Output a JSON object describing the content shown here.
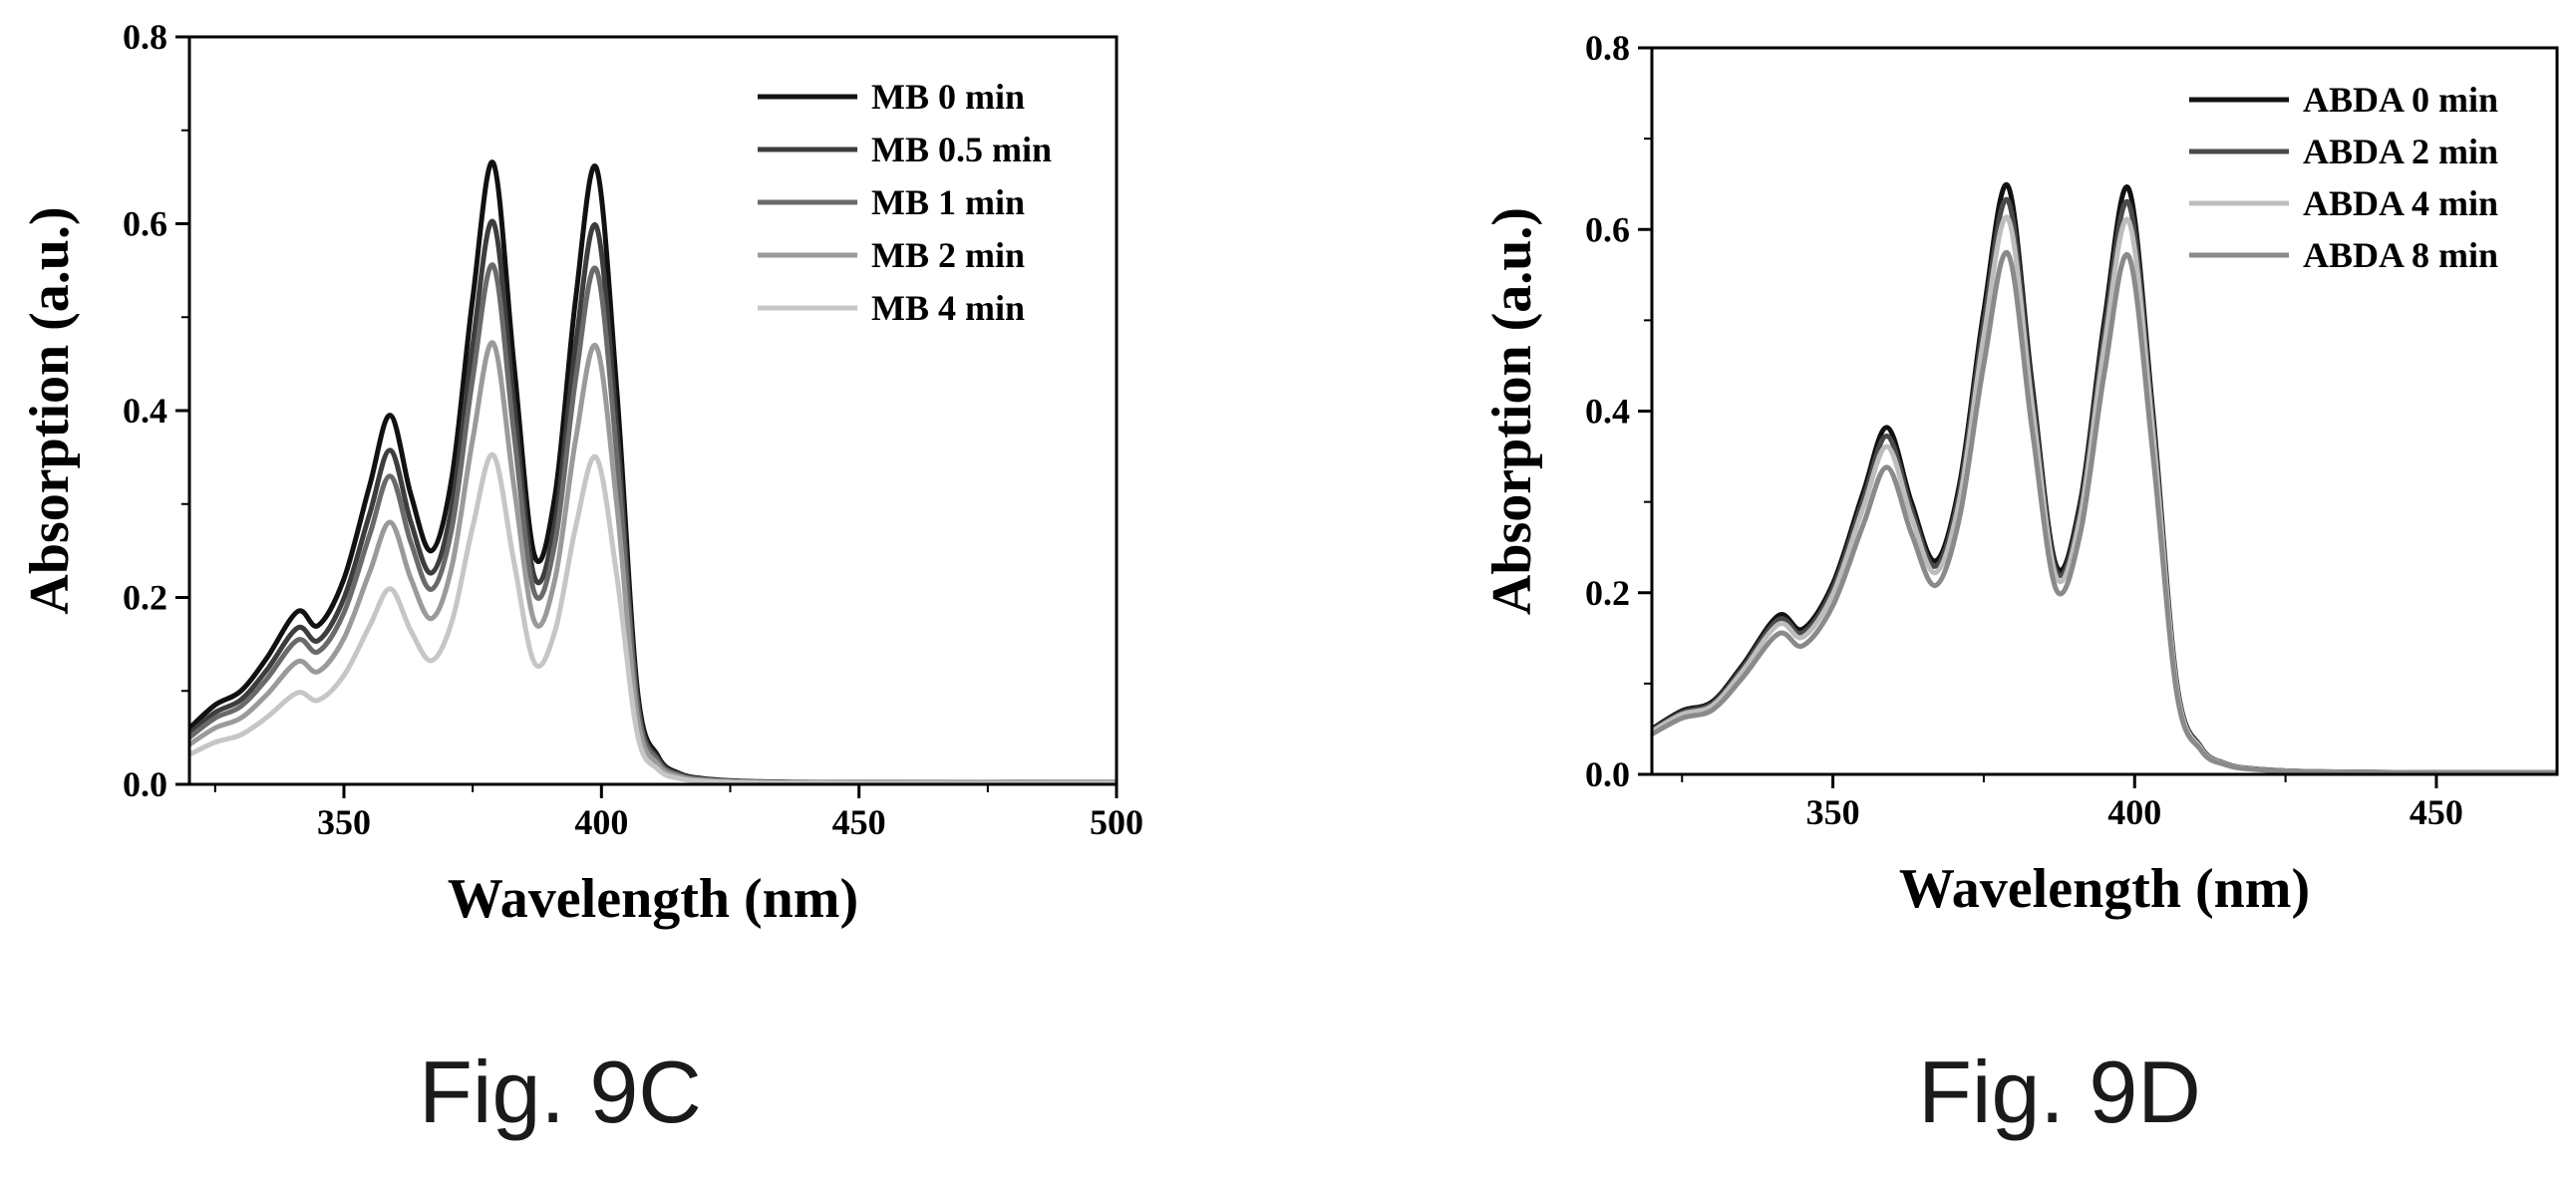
{
  "figures": {
    "left_caption": "Fig. 9C",
    "right_caption": "Fig. 9D"
  },
  "chart_data": [
    {
      "type": "line",
      "title": "",
      "xlabel": "Wavelength (nm)",
      "ylabel": "Absorption (a.u.)",
      "xlim": [
        320,
        500
      ],
      "ylim": [
        0,
        0.8
      ],
      "xticks": [
        350,
        400,
        450,
        500
      ],
      "yticks": [
        0.0,
        0.2,
        0.4,
        0.6,
        0.8
      ],
      "grid": false,
      "legend_position": "top-right",
      "series": [
        {
          "name": "MB 0 min",
          "color": "#111111",
          "scale": 1.0
        },
        {
          "name": "MB 0.5 min",
          "color": "#3d3d3d",
          "scale": 0.905
        },
        {
          "name": "MB 1 min",
          "color": "#6a6a6a",
          "scale": 0.835
        },
        {
          "name": "MB 2 min",
          "color": "#9a9a9a",
          "scale": 0.71
        },
        {
          "name": "MB 4 min",
          "color": "#c6c6c6",
          "scale": 0.53
        }
      ],
      "x": [
        320,
        325,
        330,
        335,
        341,
        345,
        350,
        355,
        359,
        363,
        367,
        371,
        375,
        379,
        383,
        387,
        391,
        395,
        399,
        403,
        407,
        411,
        415,
        420,
        430,
        450,
        500
      ],
      "reference_profile": [
        0.06,
        0.085,
        0.1,
        0.135,
        0.185,
        0.17,
        0.22,
        0.32,
        0.395,
        0.31,
        0.25,
        0.33,
        0.52,
        0.665,
        0.45,
        0.245,
        0.31,
        0.52,
        0.66,
        0.42,
        0.1,
        0.03,
        0.012,
        0.006,
        0.003,
        0.002,
        0.002
      ]
    },
    {
      "type": "line",
      "title": "",
      "xlabel": "Wavelength (nm)",
      "ylabel": "Absorption (a.u.)",
      "xlim": [
        320,
        470
      ],
      "ylim": [
        0,
        0.8
      ],
      "xticks": [
        350,
        400,
        450
      ],
      "yticks": [
        0.0,
        0.2,
        0.4,
        0.6,
        0.8
      ],
      "grid": false,
      "legend_position": "top-right",
      "series": [
        {
          "name": "ABDA 0 min",
          "color": "#111111",
          "scale": 1.0
        },
        {
          "name": "ABDA 2 min",
          "color": "#4a4a4a",
          "scale": 0.975
        },
        {
          "name": "ABDA 4 min",
          "color": "#bdbdbd",
          "scale": 0.945
        },
        {
          "name": "ABDA 8 min",
          "color": "#8a8a8a",
          "scale": 0.885
        }
      ],
      "x": [
        320,
        325,
        330,
        335,
        341,
        345,
        350,
        355,
        359,
        363,
        367,
        371,
        375,
        379,
        383,
        387,
        391,
        395,
        399,
        403,
        407,
        411,
        415,
        420,
        430,
        450,
        470
      ],
      "reference_profile": [
        0.05,
        0.07,
        0.08,
        0.12,
        0.175,
        0.16,
        0.21,
        0.31,
        0.382,
        0.3,
        0.235,
        0.32,
        0.51,
        0.648,
        0.43,
        0.23,
        0.3,
        0.5,
        0.645,
        0.4,
        0.1,
        0.03,
        0.012,
        0.006,
        0.003,
        0.002,
        0.002
      ]
    }
  ]
}
